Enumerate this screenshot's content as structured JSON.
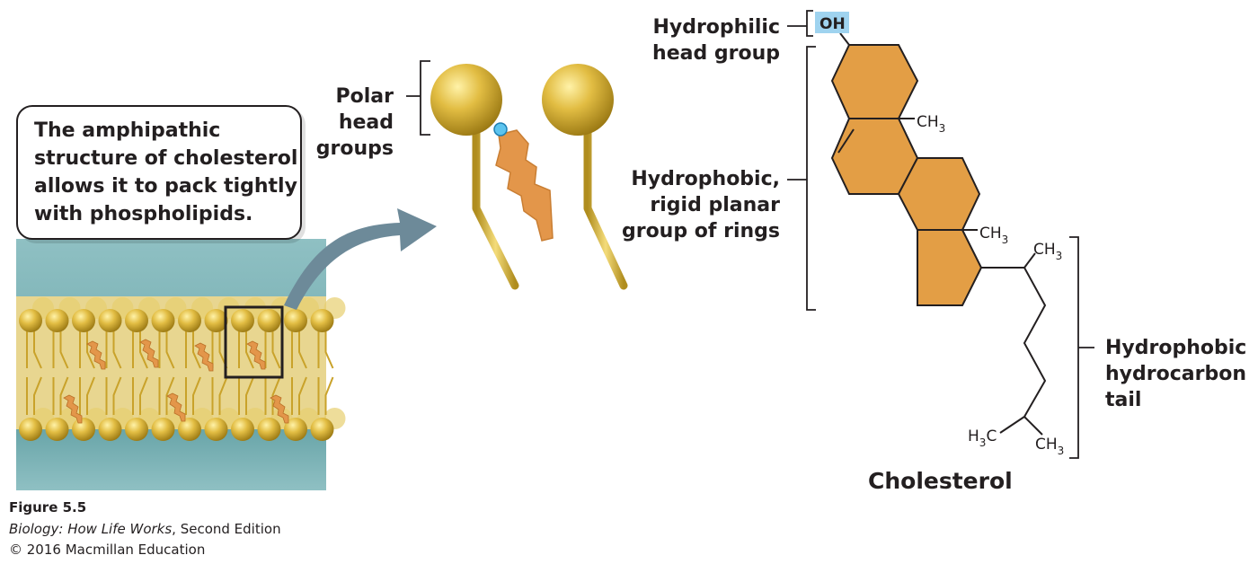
{
  "callout": {
    "text": "The amphipathic structure of cholesterol allows it to pack tightly with phospholipids."
  },
  "labels": {
    "polar_head_line1": "Polar",
    "polar_head_line2": "head",
    "polar_head_line3": "groups",
    "hydrophilic_line1": "Hydrophilic",
    "hydrophilic_line2": "head group",
    "rings_line1": "Hydrophobic,",
    "rings_line2": "rigid planar",
    "rings_line3": "group of rings",
    "tail_line1": "Hydrophobic",
    "tail_line2": "hydrocarbon",
    "tail_line3": "tail"
  },
  "molecule": {
    "oh": "OH",
    "methyl_1": "CH",
    "methyl_2": "CH",
    "methyl_3": "CH",
    "methyl_4": "CH",
    "methyl_5_left": "H",
    "methyl_5_right": "C",
    "subscript": "3",
    "name": "Cholesterol"
  },
  "caption": {
    "figure_number": "Figure 5.5",
    "book_title": "Biology: How Life Works",
    "edition": ", Second Edition",
    "copyright": "© 2016 Macmillan Education"
  },
  "colors": {
    "ring_fill": "#e39e45",
    "cholesterol_orange": "#e3964a",
    "gold": "#d9b23a",
    "oh_highlight": "#9fd3ef",
    "arrow": "#6d8a99",
    "water": "#7fb5b9"
  }
}
